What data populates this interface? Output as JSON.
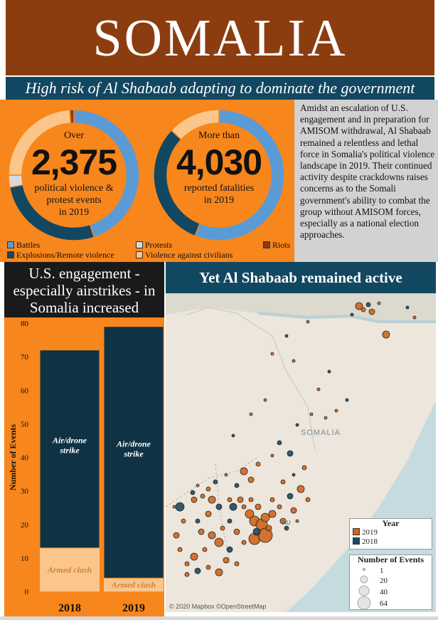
{
  "header": {
    "title": "SOMALIA"
  },
  "subtitle": "High risk of Al Shabaab adapting to dominate the government",
  "donut_events": {
    "prefix": "Over",
    "number": "2,375",
    "line1": "political violence &",
    "line2": "protest events",
    "line3": "in 2019"
  },
  "donut_fatalities": {
    "prefix": "More than",
    "number": "4,030",
    "line1": "reported fatalities",
    "line2": "in 2019"
  },
  "event_legend": {
    "battles": "Battles",
    "explosions": "Explosions/Remote violence",
    "protests": "Protests",
    "violence_civilians": "Violence against civilians",
    "riots": "Riots"
  },
  "colors": {
    "battles": "#5b9bd5",
    "explosions": "#124761",
    "protests": "#d9d9d9",
    "violence_civilians": "#fcc58a",
    "riots": "#8b3d10",
    "orange": "#f7861c",
    "navy": "#0f3244",
    "armed_clash": "#fcc58a",
    "dot_2019": "#d0661b",
    "dot_2018": "#1d4a63"
  },
  "paragraph": "Amidst an escalation of U.S. engagement and in preparation for AMISOM withdrawal, Al Shabaab remained a relentless and lethal force in Somalia's political violence landscape in 2019. Their continued activity despite crackdowns raises concerns as to the Somali government's ability to combat the group without AMISOM forces, especially as a national election approaches.",
  "bar_title": {
    "line1": "U.S. engagement -",
    "line2": "especially airstrikes - in",
    "line3": "Somalia increased"
  },
  "map_title": "Yet Al Shabaab remained active",
  "map": {
    "country_label": "SOMALIA",
    "city_label": "HU",
    "credit": "© 2020 Mapbox ©OpenStreetMap"
  },
  "map_legend": {
    "year_title": "Year",
    "year_2019": "2019",
    "year_2018": "2018",
    "size_title": "Number of Events",
    "sizes": [
      "1",
      "20",
      "40",
      "64"
    ]
  },
  "chart_data": [
    {
      "type": "donut",
      "title": "Over 2,375 political violence & protest events in 2019",
      "categories": [
        "Battles",
        "Explosions/Remote violence",
        "Protests",
        "Violence against civilians",
        "Riots"
      ],
      "values": [
        45,
        27,
        3,
        24,
        1
      ],
      "unit": "percent of events"
    },
    {
      "type": "donut",
      "title": "More than 4,030 reported fatalities in 2019",
      "categories": [
        "Battles",
        "Explosions/Remote violence",
        "Protests",
        "Violence against civilians",
        "Riots"
      ],
      "values": [
        56,
        31,
        0,
        13,
        0
      ],
      "unit": "percent of fatalities"
    },
    {
      "type": "bar",
      "stacked": true,
      "title": "U.S. engagement - especially airstrikes - in Somalia increased",
      "categories": [
        "2018",
        "2019"
      ],
      "series": [
        {
          "name": "Armed clash",
          "values": [
            13,
            4
          ]
        },
        {
          "name": "Air/drone strike",
          "values": [
            59,
            75
          ]
        }
      ],
      "ylabel": "Number of Events",
      "ylim": [
        0,
        80
      ],
      "yticks": [
        0,
        10,
        20,
        30,
        40,
        50,
        60,
        70,
        80
      ]
    }
  ]
}
